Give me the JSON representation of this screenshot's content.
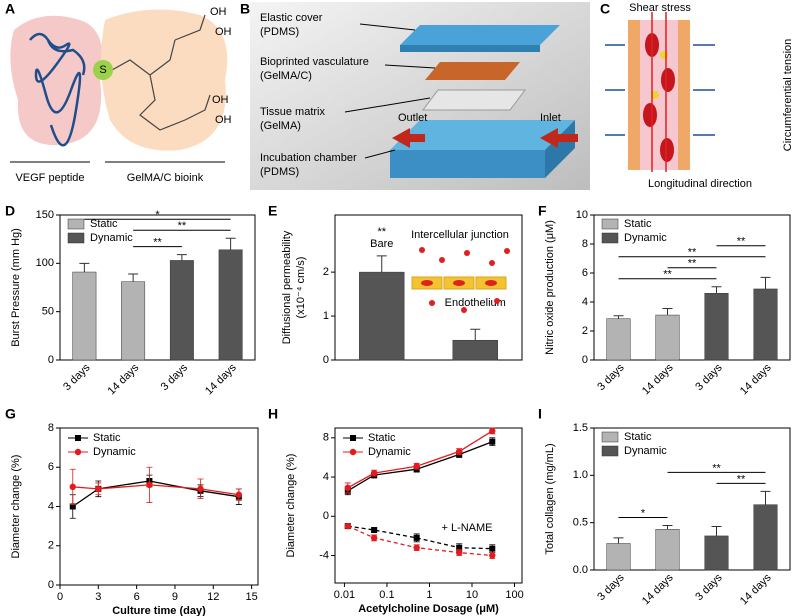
{
  "panels": {
    "A": {
      "label": "A",
      "texts": [
        "S",
        "OH",
        "OH",
        "OH",
        "OH",
        "VEGF peptide",
        "GelMA/C bioink"
      ]
    },
    "B": {
      "label": "B",
      "texts": [
        "Elastic cover",
        "(PDMS)",
        "Bioprinted vasculature",
        "(GelMA/C)",
        "Tissue matrix",
        "(GelMA)",
        "Incubation chamber",
        "(PDMS)",
        "Outlet",
        "Inlet"
      ]
    },
    "C": {
      "label": "C",
      "texts": [
        "Shear stress",
        "Circumferential tension",
        "Longitudinal direction"
      ]
    }
  },
  "chart_data": [
    {
      "type": "bar",
      "label": "D",
      "ylabel": "Burst Pressure (mm Hg)",
      "categories": [
        "3 days",
        "14 days",
        "3 days",
        "14 days"
      ],
      "series": [
        {
          "name": "Static",
          "color": "#b3b3b3",
          "values": [
            91,
            81,
            null,
            null
          ],
          "errors": [
            9,
            8,
            null,
            null
          ]
        },
        {
          "name": "Dynamic",
          "color": "#555555",
          "values": [
            null,
            null,
            103,
            114
          ],
          "errors": [
            null,
            null,
            6,
            12
          ]
        }
      ],
      "ylim": [
        0,
        150
      ],
      "yticks": [
        0,
        50,
        100,
        150
      ],
      "legend": "upper left",
      "significance": [
        {
          "label": "*",
          "from": 0,
          "to": 3
        },
        {
          "label": "**",
          "from": 1,
          "to": 3
        },
        {
          "label": "**",
          "from": 1,
          "to": 2
        }
      ]
    },
    {
      "type": "bar",
      "label": "E",
      "ylabel": [
        "Diffusional permeability",
        "(x10⁻⁴ cm/s)"
      ],
      "categories": [
        "Bare",
        "Endothelium"
      ],
      "category_labels_above": true,
      "series": [
        {
          "color": "#555555",
          "values": [
            2.0,
            0.45
          ],
          "errors": [
            0.37,
            0.25
          ]
        }
      ],
      "ylim": [
        0,
        3.3
      ],
      "yticks": [
        0,
        1,
        2
      ],
      "annotations": [
        "**",
        "Intercellular junction"
      ]
    },
    {
      "type": "bar",
      "label": "F",
      "ylabel": "Nitric oxide production (μM)",
      "categories": [
        "3 days",
        "14 days",
        "3 days",
        "14 days"
      ],
      "series": [
        {
          "name": "Static",
          "color": "#b3b3b3",
          "values": [
            2.85,
            3.1,
            null,
            null
          ],
          "errors": [
            0.2,
            0.45,
            null,
            null
          ]
        },
        {
          "name": "Dynamic",
          "color": "#555555",
          "values": [
            null,
            null,
            4.6,
            4.9
          ],
          "errors": [
            null,
            null,
            0.45,
            0.8
          ]
        }
      ],
      "ylim": [
        0,
        10
      ],
      "yticks": [
        0,
        2,
        4,
        6,
        8,
        10
      ],
      "legend": "upper left",
      "significance": [
        {
          "label": "**",
          "from": 2,
          "to": 3
        },
        {
          "label": "**",
          "from": 0,
          "to": 3
        },
        {
          "label": "**",
          "from": 1,
          "to": 2
        },
        {
          "label": "**",
          "from": 0,
          "to": 2
        }
      ]
    },
    {
      "type": "line",
      "label": "G",
      "ylabel": "Diameter change (%)",
      "xlabel": "Culture time (day)",
      "x": [
        1,
        3,
        7,
        11,
        14
      ],
      "series": [
        {
          "name": "Static",
          "color": "#000000",
          "marker": "square",
          "values": [
            4.0,
            4.9,
            5.3,
            4.8,
            4.5
          ],
          "errors": [
            0.6,
            0.4,
            0.3,
            0.3,
            0.4
          ]
        },
        {
          "name": "Dynamic",
          "color": "#e41a1c",
          "marker": "circle",
          "values": [
            5.0,
            4.9,
            5.1,
            4.9,
            4.6
          ],
          "errors": [
            0.9,
            0.3,
            0.9,
            0.5,
            0.3
          ]
        }
      ],
      "xlim": [
        0,
        15.5
      ],
      "xticks": [
        0,
        3,
        6,
        9,
        12,
        15
      ],
      "ylim": [
        0,
        8
      ],
      "yticks": [
        0,
        2,
        4,
        6,
        8
      ],
      "legend": "upper left"
    },
    {
      "type": "line",
      "label": "H",
      "ylabel": "Diameter change (%)",
      "xlabel": "Acetylcholine Dosage (μM)",
      "log_x": true,
      "x": [
        0.012,
        0.05,
        0.5,
        5,
        30
      ],
      "series": [
        {
          "name": "Static",
          "color": "#000000",
          "marker": "square",
          "values": [
            2.6,
            4.2,
            4.8,
            6.3,
            7.6
          ],
          "errors": [
            0.4,
            0.3,
            0.3,
            0.3,
            0.4
          ]
        },
        {
          "name": "Dynamic",
          "color": "#e41a1c",
          "marker": "circle",
          "values": [
            2.9,
            4.4,
            5.1,
            6.6,
            8.7
          ],
          "errors": [
            0.5,
            0.3,
            0.3,
            0.3,
            0.3
          ]
        },
        {
          "color": "#000000",
          "marker": "square",
          "dash": true,
          "values": [
            -1.0,
            -1.4,
            -2.2,
            -3.2,
            -3.3
          ],
          "errors": [
            0.2,
            0.2,
            0.4,
            0.4,
            0.4
          ]
        },
        {
          "color": "#e41a1c",
          "marker": "circle",
          "dash": true,
          "values": [
            -1.0,
            -2.2,
            -3.2,
            -3.7,
            -4.0
          ],
          "errors": [
            0.2,
            0.3,
            0.3,
            0.3,
            0.3
          ]
        }
      ],
      "xlim": [
        0.006,
        150
      ],
      "xticks": [
        0.01,
        0.1,
        1,
        10,
        100
      ],
      "ylim": [
        -6.8,
        9
      ],
      "yticks": [
        -4,
        0,
        4,
        8
      ],
      "legend": "upper left",
      "annotations": [
        "+ L-NAME"
      ]
    },
    {
      "type": "bar",
      "label": "I",
      "ylabel": "Total collagen (mg/mL)",
      "categories": [
        "3 days",
        "14 days",
        "3 days",
        "14 days"
      ],
      "series": [
        {
          "name": "Static",
          "color": "#b3b3b3",
          "values": [
            0.28,
            0.43,
            null,
            null
          ],
          "errors": [
            0.06,
            0.04,
            null,
            null
          ]
        },
        {
          "name": "Dynamic",
          "color": "#555555",
          "values": [
            null,
            null,
            0.36,
            0.69
          ],
          "errors": [
            null,
            null,
            0.1,
            0.14
          ]
        }
      ],
      "ylim": [
        0,
        1.5
      ],
      "yticks": [
        {
          "value": 0,
          "label": "0.0"
        },
        0.5,
        {
          "value": 1,
          "label": "1.0"
        },
        1.5
      ],
      "legend": "upper left",
      "significance": [
        {
          "label": "**",
          "from": 1,
          "to": 3
        },
        {
          "label": "**",
          "from": 2,
          "to": 3
        },
        {
          "label": "*",
          "from": 0,
          "to": 1
        }
      ]
    }
  ]
}
